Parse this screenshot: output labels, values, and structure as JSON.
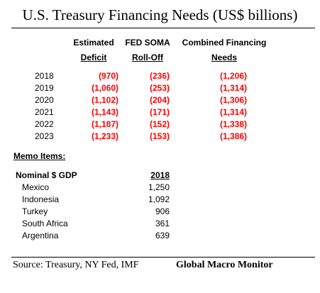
{
  "title": "U.S. Treasury Financing Needs (US$ billions)",
  "headers": {
    "col1": {
      "line1": "Estimated",
      "line2": "Deficit"
    },
    "col2": {
      "line1": "FED SOMA",
      "line2": "Roll-Off"
    },
    "col3": {
      "line1": "Combined Financing",
      "line2": "Needs"
    }
  },
  "rows": [
    {
      "year": "2018",
      "deficit": "(970)",
      "soma": "(236)",
      "combined": "(1,206)"
    },
    {
      "year": "2019",
      "deficit": "(1,060)",
      "soma": "(253)",
      "combined": "(1,314)"
    },
    {
      "year": "2020",
      "deficit": "(1,102)",
      "soma": "(204)",
      "combined": "(1,306)"
    },
    {
      "year": "2021",
      "deficit": "(1,143)",
      "soma": "(171)",
      "combined": "(1,314)"
    },
    {
      "year": "2022",
      "deficit": "(1,187)",
      "soma": "(152)",
      "combined": "(1,338)"
    },
    {
      "year": "2023",
      "deficit": "(1,233)",
      "soma": "(153)",
      "combined": "(1,386)"
    }
  ],
  "memo": {
    "title": "Memo Items:",
    "label": "Nominal $ GDP",
    "year": "2018",
    "items": [
      {
        "country": "Mexico",
        "gdp": "1,250"
      },
      {
        "country": "Indonesia",
        "gdp": "1,092"
      },
      {
        "country": "Turkey",
        "gdp": "906"
      },
      {
        "country": "South Africa",
        "gdp": "361"
      },
      {
        "country": "Argentina",
        "gdp": "639"
      }
    ]
  },
  "footer": {
    "source": "Source:  Treasury, NY Fed, IMF",
    "brand": "Global Macro Monitor"
  },
  "colors": {
    "negative_values": "#ff0000",
    "text": "#000000",
    "background": "#ffffff"
  }
}
